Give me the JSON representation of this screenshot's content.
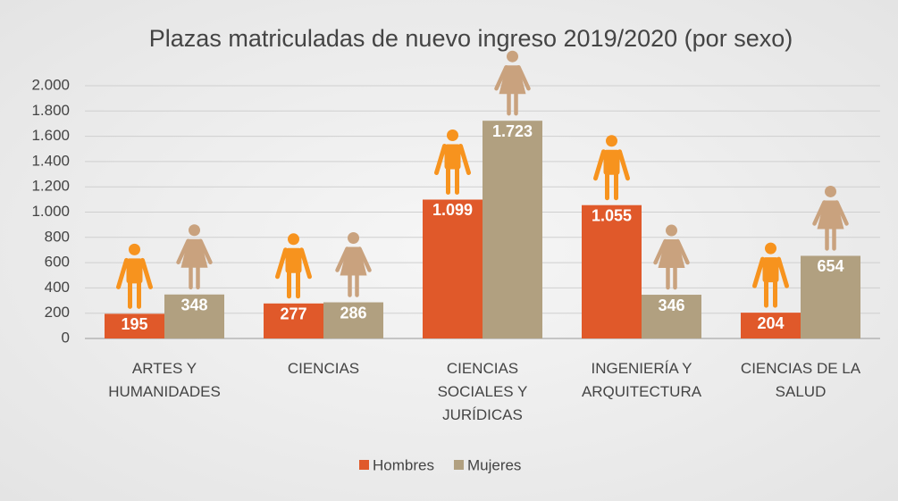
{
  "chart_data": {
    "type": "bar",
    "title": "Plazas matriculadas de nuevo ingreso 2019/2020 (por sexo)",
    "categories": [
      "ARTES Y HUMANIDADES",
      "CIENCIAS",
      "CIENCIAS SOCIALES Y JURÍDICAS",
      "INGENIERÍA Y ARQUITECTURA",
      "CIENCIAS DE LA SALUD"
    ],
    "series": [
      {
        "name": "Hombres",
        "color": "#e0592a",
        "values": [
          195,
          277,
          1099,
          1055,
          204
        ],
        "value_labels": [
          "195",
          "277",
          "1.099",
          "1.055",
          "204"
        ]
      },
      {
        "name": "Mujeres",
        "color": "#b1a080",
        "values": [
          348,
          286,
          1723,
          346,
          654
        ],
        "value_labels": [
          "348",
          "286",
          "1.723",
          "346",
          "654"
        ]
      }
    ],
    "ylim": [
      0,
      2000
    ],
    "yticks": [
      0,
      200,
      400,
      600,
      800,
      {
        "value": 1000,
        "label": "1.000"
      },
      {
        "value": 1200,
        "label": "1.200"
      },
      {
        "value": 1400,
        "label": "1.400"
      },
      {
        "value": 1600,
        "label": "1.600"
      },
      {
        "value": 1800,
        "label": "1.800"
      },
      {
        "value": 2000,
        "label": "2.000"
      }
    ],
    "grid": true,
    "legend": "bottom"
  }
}
